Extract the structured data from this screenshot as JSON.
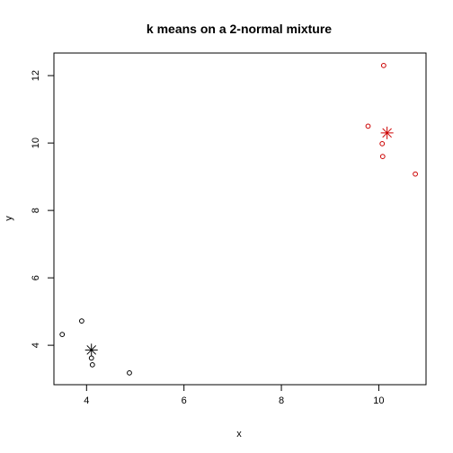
{
  "chart_data": {
    "type": "scatter",
    "title": "k means on a 2-normal mixture",
    "xlabel": "x",
    "ylabel": "y",
    "xlim": [
      3.33,
      10.97
    ],
    "ylim": [
      2.83,
      12.67
    ],
    "xticks": [
      4,
      6,
      8,
      10
    ],
    "yticks": [
      4,
      6,
      8,
      10,
      12
    ],
    "grid": false,
    "series": [
      {
        "color": "#000000",
        "marker": "circle",
        "x": [
          3.5,
          3.9,
          4.1,
          4.12,
          4.88
        ],
        "y": [
          4.32,
          4.72,
          3.62,
          3.42,
          3.18
        ]
      },
      {
        "color": "#cc0000",
        "marker": "circle",
        "x": [
          9.78,
          10.07,
          10.08,
          10.1,
          10.75
        ],
        "y": [
          10.5,
          9.98,
          9.6,
          12.3,
          9.08
        ]
      }
    ],
    "centers": [
      {
        "color": "#000000",
        "marker": "star",
        "x": 4.1,
        "y": 3.86
      },
      {
        "color": "#cc0000",
        "marker": "star",
        "x": 10.17,
        "y": 10.3
      }
    ]
  }
}
